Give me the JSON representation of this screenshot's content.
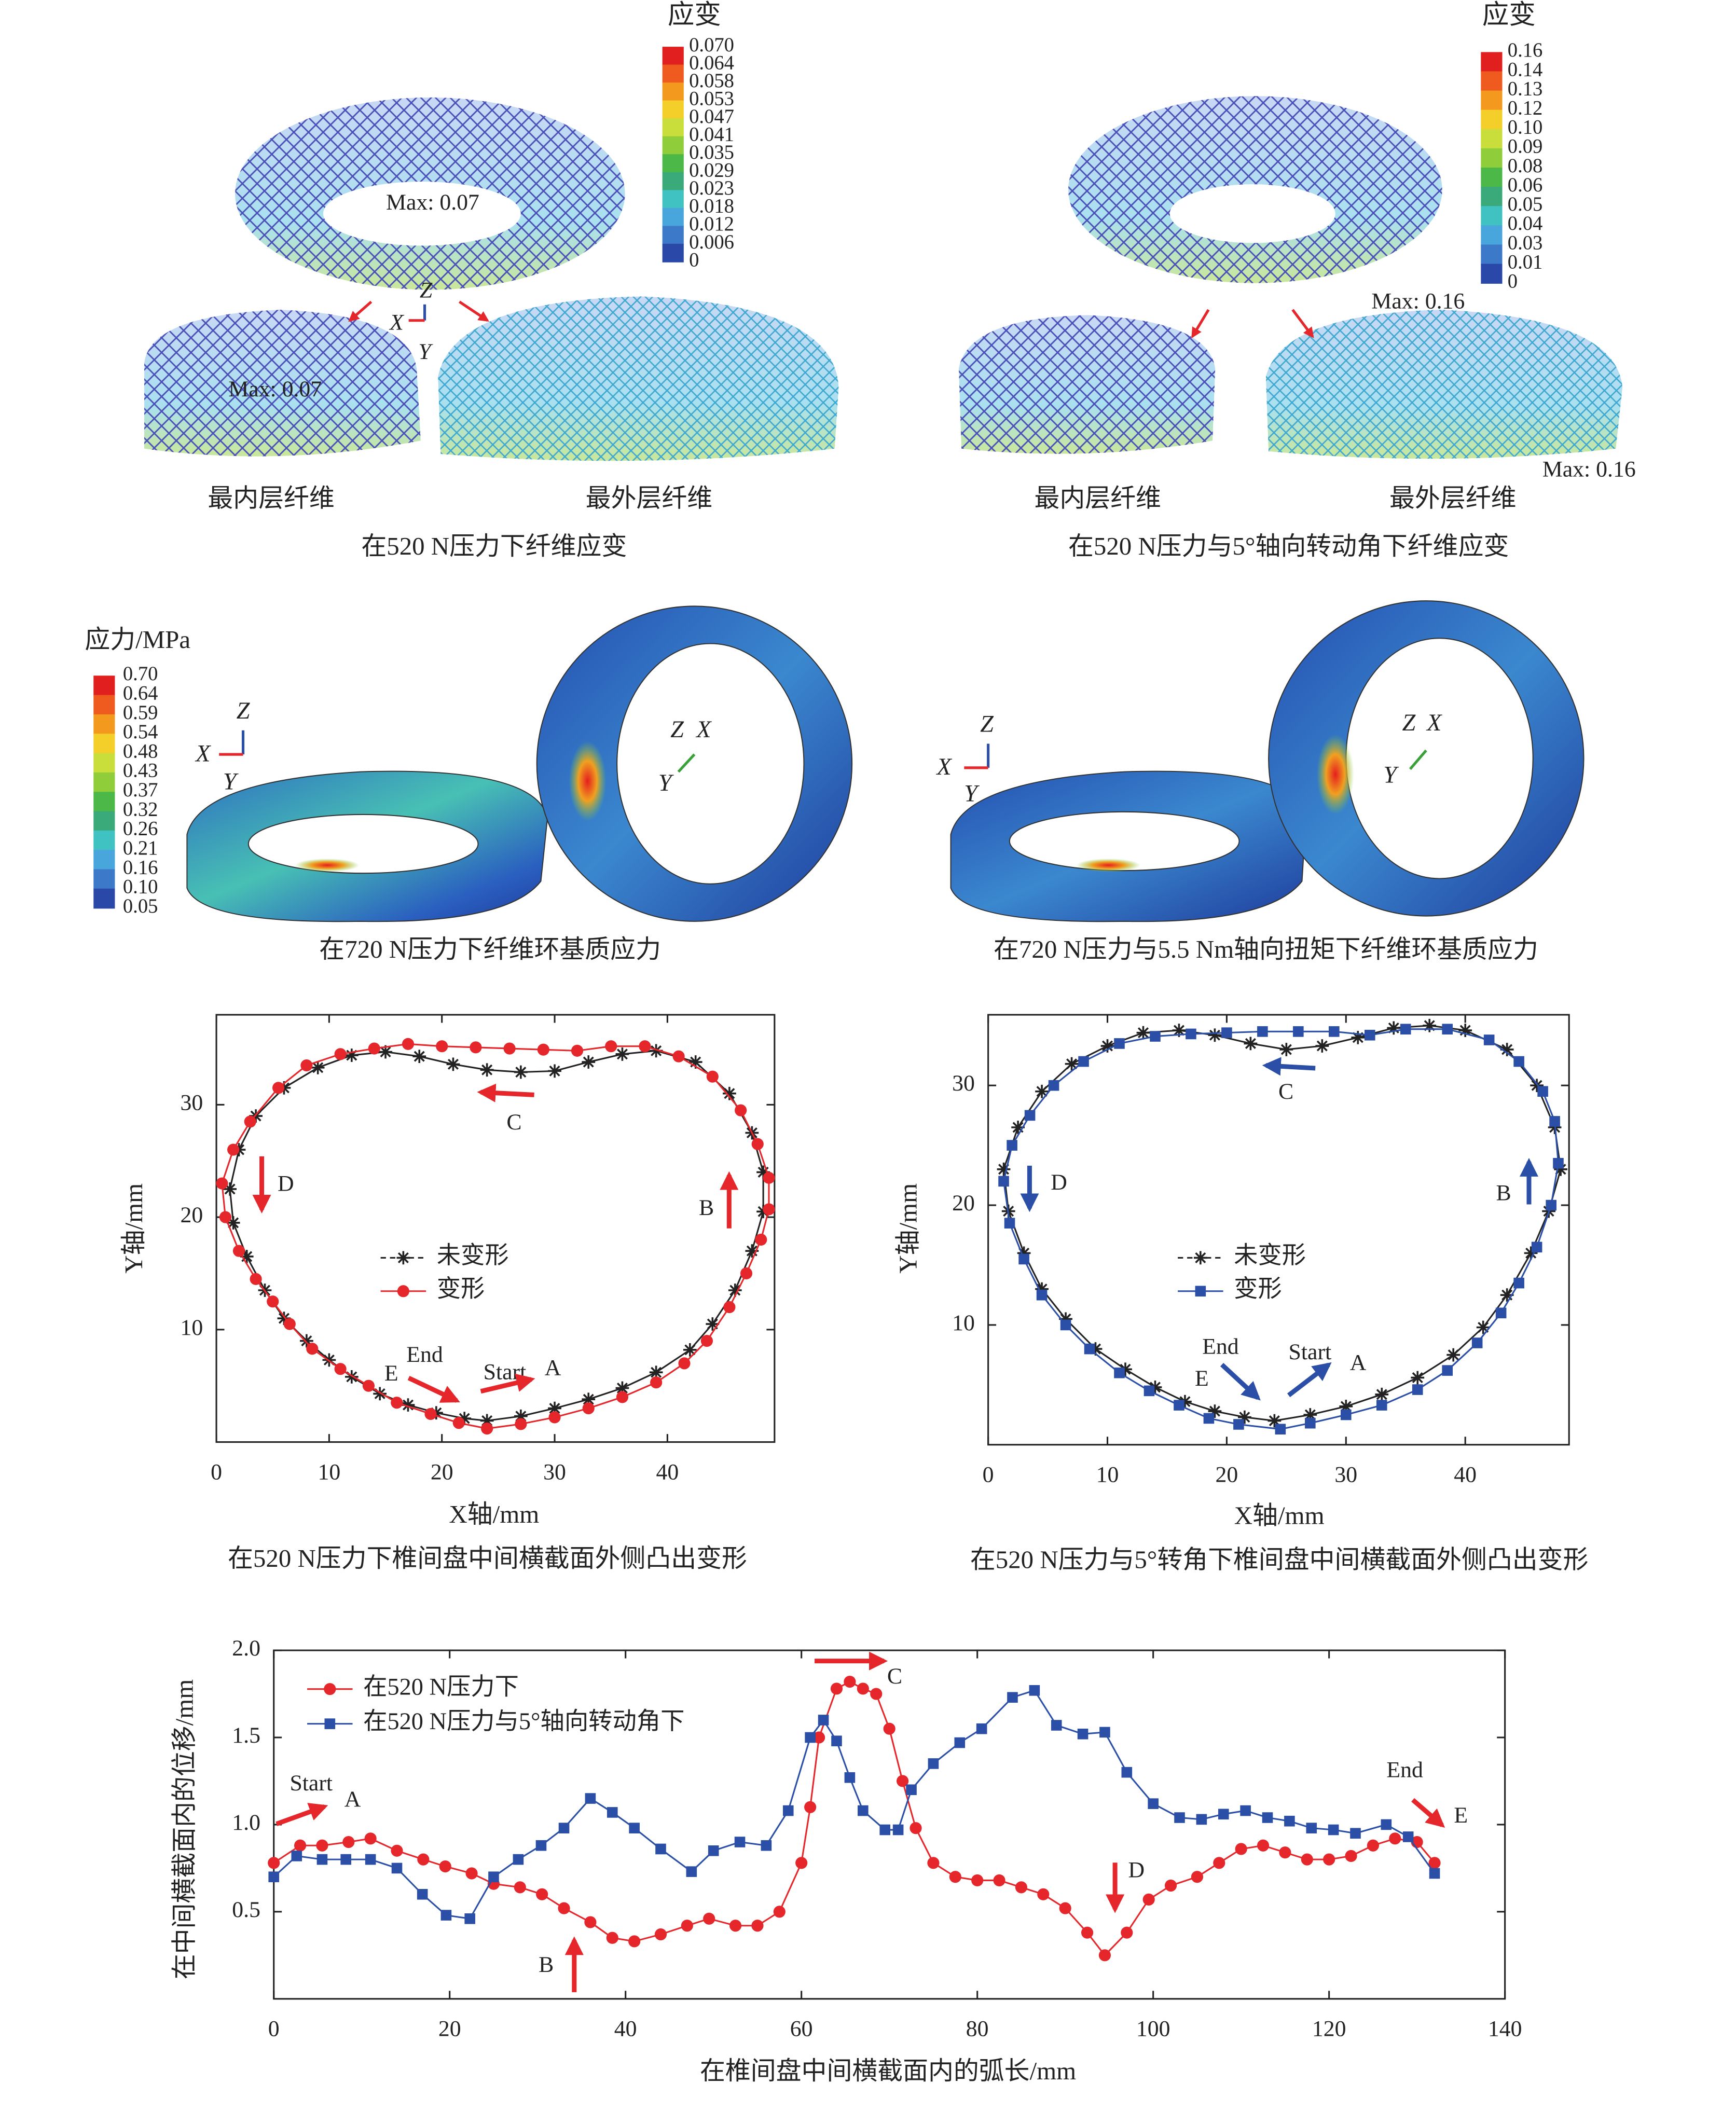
{
  "panels": [
    {
      "legend_title": "应变",
      "legend_labels": [
        "0.070",
        "0.064",
        "0.058",
        "0.053",
        "0.047",
        "0.041",
        "0.035",
        "0.029",
        "0.023",
        "0.018",
        "0.012",
        "0.006",
        "0"
      ],
      "max_labels": [
        "Max: 0.07",
        "Max: 0.07"
      ],
      "axis_labels": [
        "Z",
        "X",
        "Y"
      ],
      "sub_labels": [
        "最内层纤维",
        "最外层纤维"
      ],
      "caption": "在520 N压力下纤维应变"
    },
    {
      "legend_title": "应变",
      "legend_labels": [
        "0.16",
        "0.14",
        "0.13",
        "0.12",
        "0.10",
        "0.09",
        "0.08",
        "0.06",
        "0.05",
        "0.04",
        "0.03",
        "0.01",
        "0"
      ],
      "max_labels": [
        "Max: 0.16",
        "Max: 0.16"
      ],
      "sub_labels": [
        "最内层纤维",
        "最外层纤维"
      ],
      "caption": "在520 N压力与5°轴向转动角下纤维应变"
    },
    {
      "legend_title": "应力/MPa",
      "legend_labels": [
        "0.70",
        "0.64",
        "0.59",
        "0.54",
        "0.48",
        "0.43",
        "0.37",
        "0.32",
        "0.26",
        "0.21",
        "0.16",
        "0.10",
        "0.05"
      ],
      "axis_labels": [
        "Z",
        "X",
        "Y",
        "Z",
        "X",
        "Y"
      ],
      "caption": "在720 N压力下纤维环基质应力"
    },
    {
      "axis_labels": [
        "Z",
        "X",
        "Y",
        "Z",
        "X",
        "Y"
      ],
      "caption": "在720 N压力与5.5 Nm轴向扭矩下纤维环基质应力"
    }
  ],
  "chart_data": [
    {
      "type": "line",
      "xlabel": "X轴/mm",
      "ylabel": "Y轴/mm",
      "caption": "在520 N压力下椎间盘中间横截面外侧凸出变形",
      "xlim": [
        0,
        49.5
      ],
      "ylim": [
        0,
        38
      ],
      "xticks": [
        0,
        10,
        20,
        30,
        40
      ],
      "yticks": [
        10,
        20,
        30
      ],
      "annotations": [
        "C",
        "D",
        "B",
        "End",
        "E",
        "Start",
        "A"
      ],
      "series": [
        {
          "name": "未变形",
          "color": "#222222",
          "marker": "star",
          "x": [
            24,
            27,
            30,
            33,
            36,
            39,
            42,
            44,
            46,
            47.5,
            48.5,
            48.5,
            47.5,
            45.5,
            42.5,
            39,
            36,
            33,
            30,
            27,
            24,
            21,
            18,
            15,
            12,
            9,
            6,
            3.5,
            2,
            1.2,
            1.5,
            2.7,
            4.3,
            6,
            8,
            10,
            12,
            14.5,
            17,
            19.5,
            22
          ],
          "values": [
            1.9,
            2.3,
            3,
            3.8,
            4.8,
            6.2,
            8.2,
            10.5,
            13.5,
            17,
            20.5,
            24,
            27.5,
            31,
            33.8,
            34.8,
            34.5,
            33.8,
            33,
            32.9,
            33.1,
            33.6,
            34.3,
            34.7,
            34.4,
            33.3,
            31.5,
            29,
            26,
            22.5,
            19.5,
            16.5,
            13.5,
            11,
            9,
            7.3,
            5.8,
            4.3,
            3.3,
            2.6,
            2.1
          ]
        },
        {
          "name": "变形",
          "color": "#e5262b",
          "marker": "circle",
          "x": [
            24,
            27,
            30,
            33,
            36,
            39,
            41.5,
            43.5,
            45.5,
            47,
            48.3,
            49,
            49,
            48,
            46.5,
            44,
            41,
            38,
            35,
            32,
            29,
            26,
            23,
            20,
            17,
            14,
            11,
            8,
            5.5,
            3,
            1.5,
            0.5,
            0.8,
            2,
            3.5,
            5,
            6.5,
            8.5,
            11,
            13.5,
            16,
            19,
            21.5
          ],
          "values": [
            1.2,
            1.6,
            2.2,
            3,
            4,
            5.3,
            7,
            9,
            12,
            15,
            18,
            20.7,
            23.5,
            26.5,
            29.5,
            32.5,
            34.3,
            35.2,
            35.2,
            34.8,
            34.9,
            35,
            35.1,
            35.2,
            35.4,
            35,
            34.5,
            33.5,
            31.5,
            28.5,
            26,
            23,
            20,
            17,
            14.5,
            12.5,
            10.5,
            8.3,
            6.5,
            5,
            3.5,
            2.5,
            1.7
          ]
        }
      ]
    },
    {
      "type": "line",
      "xlabel": "X轴/mm",
      "ylabel": "Y轴/mm",
      "caption": "在520 N压力与5°转角下椎间盘中间横截面外侧凸出变形",
      "xlim": [
        0,
        48.7
      ],
      "ylim": [
        0,
        35.9
      ],
      "xticks": [
        0,
        10,
        20,
        30,
        40
      ],
      "yticks": [
        10,
        20,
        30
      ],
      "annotations": [
        "C",
        "D",
        "B",
        "End",
        "E",
        "Start",
        "A"
      ],
      "series": [
        {
          "name": "未变形",
          "color": "#222222",
          "marker": "star",
          "x": [
            24,
            27,
            30,
            33,
            36,
            39,
            41.5,
            43.5,
            45.5,
            47,
            48,
            47.5,
            46,
            43.5,
            40,
            37,
            34,
            31,
            28,
            25,
            22,
            19,
            16,
            13,
            10,
            7,
            4.5,
            2.5,
            1.3,
            1.7,
            3,
            4.5,
            6.5,
            9,
            11.5,
            14,
            16.5,
            19,
            21.5
          ],
          "values": [
            2,
            2.5,
            3.2,
            4.2,
            5.6,
            7.5,
            9.8,
            12.5,
            16,
            19.5,
            23,
            26.5,
            30,
            33,
            34.6,
            35,
            34.8,
            34,
            33.3,
            33,
            33.5,
            34.2,
            34.6,
            34.4,
            33.3,
            31.8,
            29.5,
            26.5,
            23,
            19.5,
            16,
            13,
            10.5,
            8,
            6.3,
            4.8,
            3.6,
            2.8,
            2.3
          ]
        },
        {
          "name": "变形",
          "color": "#2b4fa6",
          "marker": "square",
          "x": [
            24.5,
            27,
            30,
            33,
            36,
            38.5,
            41,
            43,
            44.5,
            46,
            47.2,
            47.8,
            47.5,
            46.5,
            44.5,
            42,
            38.5,
            35,
            32,
            29,
            26,
            23,
            20,
            17,
            14,
            11,
            8,
            5.5,
            3.5,
            2,
            1.3,
            1.8,
            3,
            4.5,
            6.5,
            8.5,
            11,
            13.5,
            16,
            18.5,
            21
          ],
          "values": [
            1.3,
            1.8,
            2.5,
            3.3,
            4.6,
            6.2,
            8.5,
            11,
            13.5,
            16.5,
            20,
            23.5,
            27,
            29.5,
            32,
            33.8,
            34.7,
            34.7,
            34.2,
            34.5,
            34.5,
            34.5,
            34.4,
            34.3,
            34.1,
            33.5,
            32,
            30,
            27.5,
            25,
            22,
            18.5,
            15.5,
            12.5,
            10,
            8,
            6,
            4.5,
            3.3,
            2.2,
            1.7
          ]
        }
      ]
    },
    {
      "type": "line",
      "xlabel": "在椎间盘中间横截面内的弧长/mm",
      "ylabel": "在中间横截面内的位移/mm",
      "xlim": [
        0,
        140
      ],
      "ylim": [
        0,
        2.0
      ],
      "xticks": [
        0,
        20,
        40,
        60,
        80,
        100,
        120,
        140
      ],
      "yticks": [
        {
          "value": 0.5,
          "label": "0.5"
        },
        {
          "value": 1.0,
          "label": "1.0"
        },
        {
          "value": 1.5,
          "label": "1.5"
        },
        {
          "value": 2.0,
          "label": "2.0"
        }
      ],
      "annotations": [
        "Start",
        "A",
        "B",
        "C",
        "D",
        "End",
        "E"
      ],
      "series": [
        {
          "name": "在520 N压力下",
          "color": "#e5262b",
          "marker": "circle",
          "x": [
            0,
            3,
            5.5,
            8.5,
            11,
            14,
            17,
            19.5,
            22.5,
            25,
            28,
            30.5,
            33,
            36,
            38.5,
            41,
            44,
            47,
            49.5,
            52.5,
            55,
            57.5,
            60,
            61,
            62,
            64,
            65.5,
            67,
            68.5,
            70,
            71.5,
            73,
            75,
            77.5,
            80,
            82.5,
            85,
            87.5,
            90,
            92.5,
            94.5,
            97,
            99.5,
            102,
            105,
            107.5,
            110,
            112.5,
            115,
            117.5,
            120,
            122.5,
            125,
            127.5,
            130,
            132
          ],
          "values": [
            0.78,
            0.88,
            0.88,
            0.9,
            0.92,
            0.85,
            0.8,
            0.76,
            0.72,
            0.66,
            0.64,
            0.6,
            0.52,
            0.44,
            0.35,
            0.33,
            0.37,
            0.42,
            0.46,
            0.42,
            0.42,
            0.5,
            0.78,
            1.1,
            1.5,
            1.78,
            1.82,
            1.78,
            1.75,
            1.55,
            1.25,
            0.98,
            0.78,
            0.7,
            0.68,
            0.68,
            0.64,
            0.6,
            0.52,
            0.38,
            0.25,
            0.38,
            0.57,
            0.65,
            0.7,
            0.78,
            0.86,
            0.88,
            0.84,
            0.8,
            0.8,
            0.82,
            0.88,
            0.92,
            0.9,
            0.78
          ]
        },
        {
          "name": "在520 N压力与5°轴向转动角下",
          "color": "#2b4fa6",
          "marker": "square",
          "x": [
            0,
            2.6,
            5.5,
            8.2,
            11,
            14,
            16.9,
            19.6,
            22.3,
            25,
            27.8,
            30.4,
            33,
            36,
            38.5,
            41,
            44,
            47.5,
            50,
            53,
            56,
            58.5,
            61,
            62.5,
            64,
            65.5,
            67,
            69.5,
            71,
            72.5,
            75,
            78,
            80.5,
            84,
            86.5,
            89,
            92,
            94.5,
            97,
            100,
            103,
            105.5,
            108,
            110.5,
            113,
            115.5,
            118,
            120.5,
            123,
            126.5,
            129,
            132
          ],
          "values": [
            0.7,
            0.82,
            0.8,
            0.8,
            0.8,
            0.75,
            0.6,
            0.48,
            0.46,
            0.7,
            0.8,
            0.88,
            0.98,
            1.15,
            1.07,
            0.98,
            0.86,
            0.73,
            0.85,
            0.9,
            0.88,
            1.08,
            1.5,
            1.6,
            1.48,
            1.27,
            1.08,
            0.97,
            0.97,
            1.2,
            1.35,
            1.47,
            1.55,
            1.73,
            1.77,
            1.57,
            1.52,
            1.53,
            1.3,
            1.12,
            1.04,
            1.03,
            1.06,
            1.08,
            1.04,
            1.02,
            0.98,
            0.97,
            0.95,
            1.0,
            0.93,
            0.72
          ]
        }
      ]
    }
  ]
}
